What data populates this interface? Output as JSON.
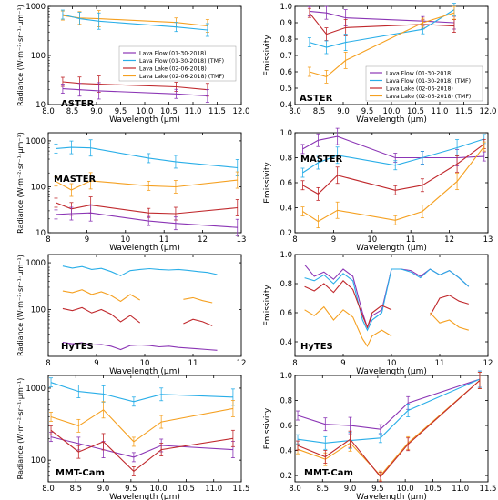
{
  "colors": {
    "purple": "#8b35b5",
    "cyan": "#29aee8",
    "red": "#c0282c",
    "orange": "#f5a020"
  },
  "legend_entries": [
    "Lava Flow (01-30-2018)",
    "Lava Flow (01-30-2018) (TMF)",
    "Lava Lake (02-06-2018)",
    "Lava Lake (02-06-2018) (TMF)"
  ],
  "chart_data": [
    {
      "id": "aster-radiance",
      "type": "line",
      "label": "ASTER",
      "ylabel": "Radiance (W·m⁻²·sr⁻¹·μm⁻¹)",
      "xlabel": "Wavelength (μm)",
      "ylog": true,
      "xlim": [
        8.0,
        12.0
      ],
      "ylim": [
        10,
        1000
      ],
      "xticks": [
        "8.0",
        "8.5",
        "9.0",
        "9.5",
        "10.0",
        "10.5",
        "11.0",
        "11.5",
        "12.0"
      ],
      "yticks": [
        "10",
        "100",
        "1000"
      ],
      "legend": "center-right",
      "series": [
        {
          "color": "orange",
          "x": [
            8.3,
            8.65,
            9.05,
            10.65,
            11.3
          ],
          "y": [
            650,
            580,
            560,
            470,
            400
          ]
        },
        {
          "color": "cyan",
          "x": [
            8.3,
            8.65,
            9.05,
            10.65,
            11.3
          ],
          "y": [
            680,
            560,
            500,
            380,
            330
          ]
        },
        {
          "color": "red",
          "x": [
            8.3,
            8.65,
            9.05,
            10.65,
            11.3
          ],
          "y": [
            29,
            27,
            26,
            23,
            20
          ]
        },
        {
          "color": "purple",
          "x": [
            8.3,
            8.65,
            9.05,
            10.65,
            11.3
          ],
          "y": [
            21,
            20,
            19,
            16.5,
            15
          ]
        }
      ]
    },
    {
      "id": "aster-emissivity",
      "type": "line",
      "label": "ASTER",
      "ylabel": "Emissivity",
      "xlabel": "Wavelength (μm)",
      "xlim": [
        8.0,
        12.0
      ],
      "ylim": [
        0.4,
        1.0
      ],
      "xticks": [
        "8.0",
        "8.5",
        "9.0",
        "9.5",
        "10.0",
        "10.5",
        "11.0",
        "11.5",
        "12.0"
      ],
      "yticks": [
        "0.4",
        "0.5",
        "0.6",
        "0.7",
        "0.8",
        "0.9",
        "1.0"
      ],
      "legend": "bottom-right",
      "series": [
        {
          "color": "purple",
          "x": [
            8.3,
            8.65,
            9.05,
            10.65,
            11.3
          ],
          "y": [
            0.97,
            0.96,
            0.93,
            0.91,
            0.9
          ]
        },
        {
          "color": "red",
          "x": [
            8.3,
            8.65,
            9.05,
            10.65,
            11.3
          ],
          "y": [
            0.96,
            0.83,
            0.87,
            0.89,
            0.88
          ]
        },
        {
          "color": "cyan",
          "x": [
            8.3,
            8.65,
            9.05,
            10.65,
            11.3
          ],
          "y": [
            0.78,
            0.75,
            0.78,
            0.86,
            0.98
          ]
        },
        {
          "color": "orange",
          "x": [
            8.3,
            8.65,
            9.05,
            10.65,
            11.3
          ],
          "y": [
            0.6,
            0.57,
            0.67,
            0.9,
            0.96
          ]
        }
      ]
    },
    {
      "id": "master-radiance",
      "type": "line",
      "label": "MASTER",
      "ylabel": "Radiance (W·m⁻²·sr⁻¹·μm⁻¹)",
      "xlabel": "Wavelength (μm)",
      "ylog": true,
      "xlim": [
        8,
        13
      ],
      "ylim": [
        10,
        1500
      ],
      "xticks": [
        "8",
        "9",
        "10",
        "11",
        "12",
        "13"
      ],
      "yticks": [
        "10",
        "100",
        "1000"
      ],
      "series": [
        {
          "color": "cyan",
          "x": [
            8.2,
            8.6,
            9.1,
            10.6,
            11.3,
            12.9
          ],
          "y": [
            680,
            720,
            700,
            420,
            350,
            260
          ]
        },
        {
          "color": "orange",
          "x": [
            8.2,
            8.6,
            9.1,
            10.6,
            11.3,
            12.9
          ],
          "y": [
            130,
            85,
            135,
            105,
            100,
            140
          ]
        },
        {
          "color": "red",
          "x": [
            8.2,
            8.6,
            9.1,
            10.6,
            11.3,
            12.9
          ],
          "y": [
            45,
            33,
            40,
            27,
            26,
            35
          ]
        },
        {
          "color": "purple",
          "x": [
            8.2,
            8.6,
            9.1,
            10.6,
            11.3,
            12.9
          ],
          "y": [
            25,
            26,
            27,
            18,
            16,
            13
          ]
        }
      ]
    },
    {
      "id": "master-emissivity",
      "type": "line",
      "label": "MASTER",
      "ylabel": "Emissivity",
      "xlabel": "Wavelength (μm)",
      "xlim": [
        8,
        13
      ],
      "ylim": [
        0.2,
        1.0
      ],
      "xticks": [
        "8",
        "9",
        "10",
        "11",
        "12",
        "13"
      ],
      "yticks": [
        "0.2",
        "0.4",
        "0.6",
        "0.8",
        "1.0"
      ],
      "series": [
        {
          "color": "purple",
          "x": [
            8.2,
            8.6,
            9.1,
            10.6,
            11.3,
            12.2,
            12.9
          ],
          "y": [
            0.87,
            0.94,
            0.97,
            0.8,
            0.8,
            0.8,
            0.81
          ]
        },
        {
          "color": "cyan",
          "x": [
            8.2,
            8.6,
            9.1,
            10.6,
            11.3,
            12.2,
            12.9
          ],
          "y": [
            0.68,
            0.76,
            0.82,
            0.74,
            0.8,
            0.88,
            0.95
          ]
        },
        {
          "color": "red",
          "x": [
            8.2,
            8.6,
            9.1,
            10.6,
            11.3,
            12.2,
            12.9
          ],
          "y": [
            0.58,
            0.51,
            0.66,
            0.54,
            0.58,
            0.75,
            0.91
          ]
        },
        {
          "color": "orange",
          "x": [
            8.2,
            8.6,
            9.1,
            10.6,
            11.3,
            12.2,
            12.9
          ],
          "y": [
            0.37,
            0.29,
            0.38,
            0.3,
            0.37,
            0.61,
            0.89
          ]
        }
      ]
    },
    {
      "id": "hytes-radiance",
      "type": "line",
      "label": "HyTES",
      "ylabel": "Radiance (W·m⁻²·sr⁻¹·μm⁻¹)",
      "xlabel": "Wavelength (μm)",
      "ylog": true,
      "xlim": [
        8,
        12
      ],
      "ylim": [
        10,
        1500
      ],
      "xticks": [
        "8",
        "9",
        "10",
        "11",
        "12"
      ],
      "yticks": [
        "100",
        "1000"
      ],
      "series": [
        {
          "color": "cyan",
          "x": [
            8.3,
            8.5,
            8.7,
            8.9,
            9.1,
            9.3,
            9.5,
            9.7,
            9.9,
            10.1,
            10.3,
            10.5,
            10.7,
            10.9,
            11.1,
            11.3,
            11.5
          ],
          "y": [
            850,
            770,
            830,
            720,
            760,
            650,
            530,
            680,
            720,
            750,
            720,
            700,
            720,
            690,
            650,
            620,
            560
          ]
        },
        {
          "color": "orange",
          "x": [
            8.3,
            8.5,
            8.7,
            8.9,
            9.1,
            9.3,
            9.5,
            9.7,
            9.9
          ],
          "y": [
            250,
            230,
            265,
            210,
            240,
            200,
            150,
            210,
            160
          ]
        },
        {
          "color": "orange",
          "x": [
            10.8,
            11.0,
            11.2,
            11.4
          ],
          "y": [
            165,
            180,
            155,
            140
          ]
        },
        {
          "color": "red",
          "x": [
            8.3,
            8.5,
            8.7,
            8.9,
            9.1,
            9.3,
            9.5,
            9.7,
            9.9
          ],
          "y": [
            105,
            95,
            110,
            85,
            100,
            80,
            55,
            75,
            52
          ]
        },
        {
          "color": "red",
          "x": [
            10.8,
            11.0,
            11.2,
            11.4
          ],
          "y": [
            50,
            62,
            55,
            45
          ]
        },
        {
          "color": "purple",
          "x": [
            8.3,
            8.5,
            8.7,
            8.9,
            9.1,
            9.3,
            9.5,
            9.7,
            9.9,
            10.1,
            10.3,
            10.5,
            10.7,
            10.9,
            11.1,
            11.3,
            11.5
          ],
          "y": [
            20,
            18.5,
            19.5,
            17.5,
            18,
            16.5,
            14,
            17,
            17.5,
            17,
            16,
            16.5,
            15.5,
            15,
            14.5,
            14,
            13.5
          ]
        }
      ]
    },
    {
      "id": "hytes-emissivity",
      "type": "line",
      "label": "HyTES",
      "ylabel": "Emissivity",
      "xlabel": "Wavelength (μm)",
      "xlim": [
        8,
        12
      ],
      "ylim": [
        0.3,
        1.0
      ],
      "xticks": [
        "8",
        "9",
        "10",
        "11",
        "12"
      ],
      "yticks": [
        "0.4",
        "0.6",
        "0.8",
        "1.0"
      ],
      "series": [
        {
          "color": "purple",
          "x": [
            8.2,
            8.4,
            8.6,
            8.8,
            9.0,
            9.2,
            9.4,
            9.5,
            9.6,
            9.8,
            10.0,
            10.2,
            10.4,
            10.6,
            10.8,
            11.0,
            11.2,
            11.4,
            11.6
          ],
          "y": [
            0.93,
            0.85,
            0.88,
            0.83,
            0.9,
            0.85,
            0.6,
            0.5,
            0.58,
            0.62,
            0.9,
            0.9,
            0.89,
            0.85,
            0.9,
            0.86,
            0.89,
            0.84,
            0.78
          ]
        },
        {
          "color": "cyan",
          "x": [
            8.2,
            8.4,
            8.6,
            8.8,
            9.0,
            9.2,
            9.4,
            9.5,
            9.6,
            9.8,
            10.0,
            10.2,
            10.4,
            10.6,
            10.8,
            11.0,
            11.2,
            11.4,
            11.6
          ],
          "y": [
            0.84,
            0.82,
            0.86,
            0.8,
            0.87,
            0.82,
            0.55,
            0.48,
            0.55,
            0.6,
            0.9,
            0.9,
            0.88,
            0.84,
            0.9,
            0.86,
            0.89,
            0.84,
            0.78
          ]
        },
        {
          "color": "red",
          "x": [
            8.2,
            8.4,
            8.6,
            8.8,
            9.0,
            9.2,
            9.4,
            9.5,
            9.6,
            9.8,
            10.0
          ],
          "y": [
            0.78,
            0.75,
            0.8,
            0.74,
            0.82,
            0.76,
            0.58,
            0.5,
            0.6,
            0.65,
            0.62
          ]
        },
        {
          "color": "red",
          "x": [
            10.8,
            11.0,
            11.2,
            11.4,
            11.6
          ],
          "y": [
            0.58,
            0.7,
            0.72,
            0.68,
            0.66
          ]
        },
        {
          "color": "orange",
          "x": [
            8.2,
            8.4,
            8.6,
            8.8,
            9.0,
            9.2,
            9.4,
            9.5,
            9.6,
            9.8,
            10.0
          ],
          "y": [
            0.62,
            0.58,
            0.64,
            0.55,
            0.62,
            0.57,
            0.42,
            0.37,
            0.44,
            0.48,
            0.44
          ]
        },
        {
          "color": "orange",
          "x": [
            10.8,
            11.0,
            11.2,
            11.4,
            11.6
          ],
          "y": [
            0.6,
            0.53,
            0.55,
            0.5,
            0.48
          ]
        }
      ]
    },
    {
      "id": "mmtcam-radiance",
      "type": "line",
      "label": "MMT-Cam",
      "ylabel": "Radiance (W·m⁻²·sr⁻¹·μm⁻¹)",
      "xlabel": "Wavelength (μm)",
      "ylog": true,
      "xlim": [
        8.0,
        11.5
      ],
      "ylim": [
        50,
        1500
      ],
      "xticks": [
        "8.0",
        "8.5",
        "9.0",
        "9.5",
        "10.0",
        "10.5",
        "11.0",
        "11.5"
      ],
      "yticks": [
        "100",
        "1000"
      ],
      "series": [
        {
          "color": "cyan",
          "x": [
            8.05,
            8.55,
            9.0,
            9.55,
            10.05,
            11.35
          ],
          "y": [
            1200,
            900,
            830,
            650,
            820,
            750
          ]
        },
        {
          "color": "orange",
          "x": [
            8.05,
            8.55,
            9.0,
            9.55,
            10.05,
            11.35
          ],
          "y": [
            400,
            300,
            500,
            180,
            340,
            520
          ]
        },
        {
          "color": "purple",
          "x": [
            8.05,
            8.55,
            9.0,
            9.55,
            10.05,
            11.35
          ],
          "y": [
            210,
            170,
            140,
            110,
            160,
            140
          ]
        },
        {
          "color": "red",
          "x": [
            8.05,
            8.55,
            9.0,
            9.55,
            10.05,
            11.35
          ],
          "y": [
            260,
            130,
            180,
            70,
            140,
            200
          ]
        }
      ]
    },
    {
      "id": "mmtcam-emissivity",
      "type": "line",
      "label": "MMT-Cam",
      "ylabel": "Emissivity",
      "xlabel": "Wavelength (μm)",
      "xlim": [
        8.0,
        11.5
      ],
      "ylim": [
        0.15,
        1.0
      ],
      "xticks": [
        "8.0",
        "8.5",
        "9.0",
        "9.5",
        "10.0",
        "10.5",
        "11.0",
        "11.5"
      ],
      "yticks": [
        "0.2",
        "0.4",
        "0.6",
        "0.8",
        "1.0"
      ],
      "series": [
        {
          "color": "purple",
          "x": [
            8.05,
            8.55,
            9.0,
            9.55,
            10.05,
            11.35
          ],
          "y": [
            0.68,
            0.61,
            0.6,
            0.57,
            0.78,
            0.97
          ]
        },
        {
          "color": "cyan",
          "x": [
            8.05,
            8.55,
            9.0,
            9.55,
            10.05,
            11.35
          ],
          "y": [
            0.49,
            0.46,
            0.48,
            0.5,
            0.72,
            0.97
          ]
        },
        {
          "color": "orange",
          "x": [
            8.05,
            8.55,
            9.0,
            9.55,
            10.05,
            11.35
          ],
          "y": [
            0.41,
            0.33,
            0.46,
            0.2,
            0.46,
            0.96
          ]
        },
        {
          "color": "red",
          "x": [
            8.05,
            8.55,
            9.0,
            9.55,
            10.05,
            11.35
          ],
          "y": [
            0.44,
            0.35,
            0.49,
            0.19,
            0.45,
            0.96
          ]
        }
      ]
    }
  ]
}
